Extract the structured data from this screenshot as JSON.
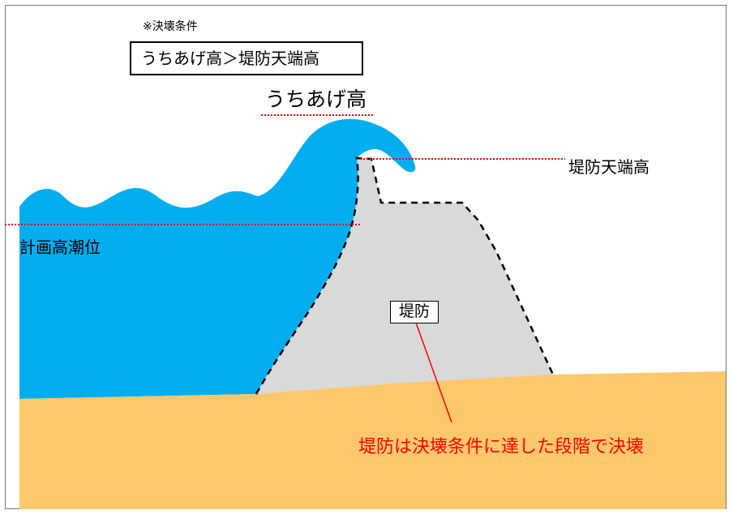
{
  "note": {
    "title": "※決壊条件",
    "condition": "うちあげ高＞堤防天端高"
  },
  "labels": {
    "runup_height": "うちあげ高",
    "crest_height": "堤防天端高",
    "design_tide": "計画高潮位",
    "levee": "堤防",
    "failure_note": "堤防は決壊条件に達した段階で決壊"
  },
  "colors": {
    "water": "#00aeef",
    "levee": "#d9d9d9",
    "ground": "#fdc86b",
    "guide_line": "#ff0000",
    "annotation": "#ff0000"
  }
}
